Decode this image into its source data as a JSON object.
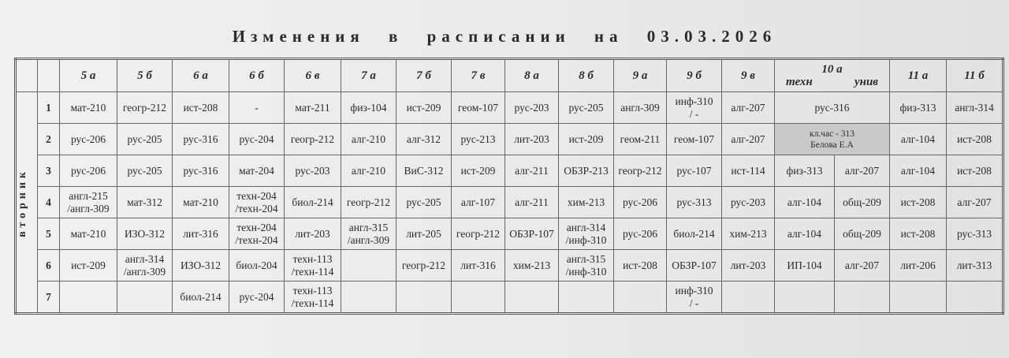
{
  "title": "Изменения в расписании на 03.03.2026",
  "day": "вторник",
  "classes": [
    "5 а",
    "5 б",
    "6 а",
    "6 б",
    "6 в",
    "7 а",
    "7 б",
    "7 в",
    "8 а",
    "8 б",
    "9 а",
    "9 б",
    "9 в"
  ],
  "class_10a": {
    "label": "10 а",
    "groups": [
      "техн",
      "унив"
    ]
  },
  "classes_11": [
    "11 а",
    "11 б"
  ],
  "rows": [
    {
      "num": "1",
      "cells": [
        "мат-210",
        "геогр-212",
        "ист-208",
        "-",
        "мат-211",
        "физ-104",
        "ист-209",
        "геом-107",
        "рус-203",
        "рус-205",
        "англ-309",
        "инф-310\n/ -",
        "алг-207"
      ],
      "c10_merged": "рус-316",
      "c10": null,
      "c11": [
        "физ-313",
        "англ-314"
      ]
    },
    {
      "num": "2",
      "cells": [
        "рус-206",
        "рус-205",
        "рус-316",
        "рус-204",
        "геогр-212",
        "алг-210",
        "алг-312",
        "рус-213",
        "лит-203",
        "ист-209",
        "геом-211",
        "геом-107",
        "алг-207"
      ],
      "c10_merged": "кл.час - 313\nБелова Е.А",
      "c10_shaded": true,
      "c10": null,
      "c11": [
        "алг-104",
        "ист-208"
      ]
    },
    {
      "num": "3",
      "cells": [
        "рус-206",
        "рус-205",
        "рус-316",
        "мат-204",
        "рус-203",
        "алг-210",
        "ВиС-312",
        "ист-209",
        "алг-211",
        "ОБЗР-213",
        "геогр-212",
        "рус-107",
        "ист-114"
      ],
      "c10": [
        "физ-313",
        "алг-207"
      ],
      "c11": [
        "алг-104",
        "ист-208"
      ]
    },
    {
      "num": "4",
      "cells": [
        "англ-215\n/англ-309",
        "мат-312",
        "мат-210",
        "техн-204\n/техн-204",
        "биол-214",
        "геогр-212",
        "рус-205",
        "алг-107",
        "алг-211",
        "хим-213",
        "рус-206",
        "рус-313",
        "рус-203"
      ],
      "c10": [
        "алг-104",
        "общ-209"
      ],
      "c11": [
        "ист-208",
        "алг-207"
      ]
    },
    {
      "num": "5",
      "cells": [
        "мат-210",
        "ИЗО-312",
        "лит-316",
        "техн-204\n/техн-204",
        "лит-203",
        "англ-315\n/англ-309",
        "лит-205",
        "геогр-212",
        "ОБЗР-107",
        "англ-314\n/инф-310",
        "рус-206",
        "биол-214",
        "хим-213"
      ],
      "c10": [
        "алг-104",
        "общ-209"
      ],
      "c11": [
        "ист-208",
        "рус-313"
      ]
    },
    {
      "num": "6",
      "cells": [
        "ист-209",
        "англ-314\n/англ-309",
        "ИЗО-312",
        "биол-204",
        "техн-113\n/техн-114",
        "",
        "геогр-212",
        "лит-316",
        "хим-213",
        "англ-315\n/инф-310",
        "ист-208",
        "ОБЗР-107",
        "лит-203"
      ],
      "c10": [
        "ИП-104",
        "алг-207"
      ],
      "c11": [
        "лит-206",
        "лит-313"
      ]
    },
    {
      "num": "7",
      "cells": [
        "",
        "",
        "биол-214",
        "рус-204",
        "техн-113\n/техн-114",
        "",
        "",
        "",
        "",
        "",
        "",
        "инф-310\n/ -",
        ""
      ],
      "c10": [
        "",
        ""
      ],
      "c11": [
        "",
        ""
      ]
    }
  ]
}
